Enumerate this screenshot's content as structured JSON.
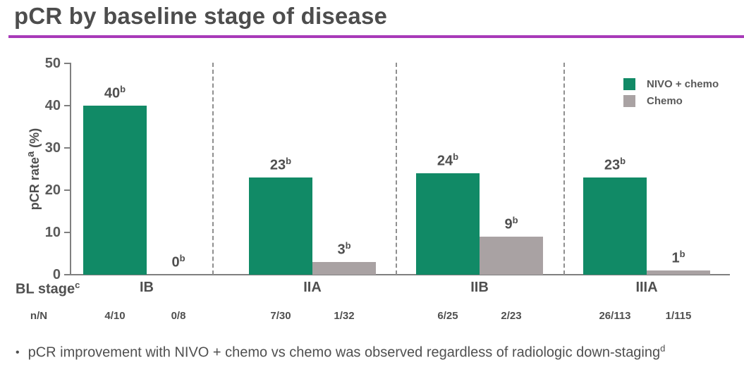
{
  "header": {
    "title": "pCR by baseline stage of disease"
  },
  "colors": {
    "accent_underline": "#a83ab8",
    "nivo_green": "#118a66",
    "chemo_gray": "#a9a2a3",
    "axis_gray": "#7f7f7f",
    "text_gray": "#4f4f4f"
  },
  "chart_data": {
    "type": "bar",
    "title": "pCR by baseline stage of disease",
    "ylabel_text": "pCR rate",
    "ylabel_sup": "a",
    "ylabel_unit": "(%)",
    "ylim": [
      0,
      50
    ],
    "yticks": [
      0,
      10,
      20,
      30,
      40,
      50
    ],
    "grid": false,
    "legend_position": "top-right",
    "categories": [
      "IB",
      "IIA",
      "IIB",
      "IIIA"
    ],
    "series": [
      {
        "name": "NIVO + chemo",
        "color": "#118a66",
        "values": [
          40,
          23,
          24,
          23
        ],
        "n_over_N": [
          "4/10",
          "7/30",
          "6/25",
          "26/113"
        ]
      },
      {
        "name": "Chemo",
        "color": "#a9a2a3",
        "values": [
          0,
          3,
          9,
          1
        ],
        "n_over_N": [
          "0/8",
          "1/32",
          "2/23",
          "1/115"
        ]
      }
    ],
    "value_label_sup": "b"
  },
  "bottom": {
    "bl_stage_label": "BL stage",
    "bl_stage_sup": "c",
    "nN_label": "n/N"
  },
  "footnote": {
    "bullet": "•",
    "text": "pCR improvement with NIVO + chemo vs chemo was observed regardless of radiologic down-staging",
    "sup": "d"
  }
}
